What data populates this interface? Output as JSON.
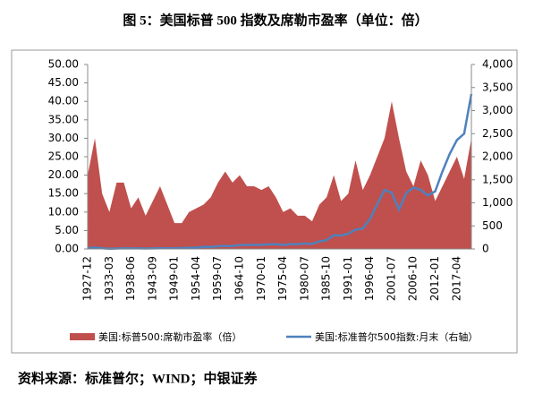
{
  "chart_data": {
    "type": "combo",
    "title": "图 5：美国标普 500 指数及席勒市盈率（单位：倍）",
    "source": "资料来源：标准普尔；WIND；中银证券",
    "categories": [
      "1927-12",
      null,
      null,
      "1933-03",
      null,
      null,
      "1938-06",
      null,
      null,
      "1943-09",
      null,
      null,
      "1949-01",
      null,
      null,
      "1954-04",
      null,
      null,
      "1959-07",
      null,
      null,
      "1964-10",
      null,
      null,
      "1970-01",
      null,
      null,
      "1975-04",
      null,
      null,
      "1980-07",
      null,
      null,
      "1985-10",
      null,
      null,
      "1991-01",
      null,
      null,
      "1996-04",
      null,
      null,
      "2001-07",
      null,
      null,
      "2006-10",
      null,
      null,
      "2012-01",
      null,
      null,
      "2017-04",
      null,
      null
    ],
    "series": [
      {
        "name": "美国:标普500:席勒市盈率（倍）",
        "type": "area",
        "color": "#c0504d",
        "values": [
          20,
          30,
          15,
          10,
          18,
          18,
          11,
          14,
          9,
          13,
          17,
          12,
          7,
          7,
          10,
          11,
          12,
          14,
          18,
          21,
          18,
          20,
          17,
          17,
          16,
          17,
          14,
          10,
          11,
          9,
          9,
          7.5,
          12,
          14,
          20,
          13,
          15,
          24,
          16,
          20,
          25,
          30,
          40,
          30,
          21,
          17,
          24,
          20,
          13,
          17,
          21,
          25,
          19,
          30
        ]
      },
      {
        "name": "美国:标准普尔500指数:月末（右轴）",
        "type": "line",
        "axis": "y2",
        "color": "#4f81bd",
        "values": [
          17,
          31,
          15,
          6,
          9,
          15,
          11,
          12,
          9,
          12,
          14,
          15,
          15,
          19,
          25,
          28,
          45,
          43,
          60,
          65,
          63,
          85,
          86,
          90,
          90,
          99,
          105,
          85,
          107,
          103,
          120,
          110,
          164,
          190,
          300,
          292,
          330,
          418,
          444,
          650,
          970,
          1280,
          1220,
          850,
          1210,
          1330,
          1280,
          1160,
          1250,
          1680,
          2060,
          2360,
          2500,
          3360
        ]
      }
    ],
    "ylim": [
      0,
      50
    ],
    "yticks": [
      {
        "value": 0,
        "label": "0.00"
      },
      {
        "value": 5,
        "label": "5.00"
      },
      {
        "value": 10,
        "label": "10.00"
      },
      {
        "value": 15,
        "label": "15.00"
      },
      {
        "value": 20,
        "label": "20.00"
      },
      {
        "value": 25,
        "label": "25.00"
      },
      {
        "value": 30,
        "label": "30.00"
      },
      {
        "value": 35,
        "label": "35.00"
      },
      {
        "value": 40,
        "label": "40.00"
      },
      {
        "value": 45,
        "label": "45.00"
      },
      {
        "value": 50,
        "label": "50.00"
      }
    ],
    "y2lim": [
      0,
      4000
    ],
    "y2ticks": [
      0,
      500,
      {
        "value": 1000,
        "label": "1,000"
      },
      {
        "value": 1500,
        "label": "1,500"
      },
      {
        "value": 2000,
        "label": "2,000"
      },
      {
        "value": 2500,
        "label": "2,500"
      },
      {
        "value": 3000,
        "label": "3,000"
      },
      {
        "value": 3500,
        "label": "3,500"
      },
      {
        "value": 4000,
        "label": "4,000"
      }
    ]
  }
}
